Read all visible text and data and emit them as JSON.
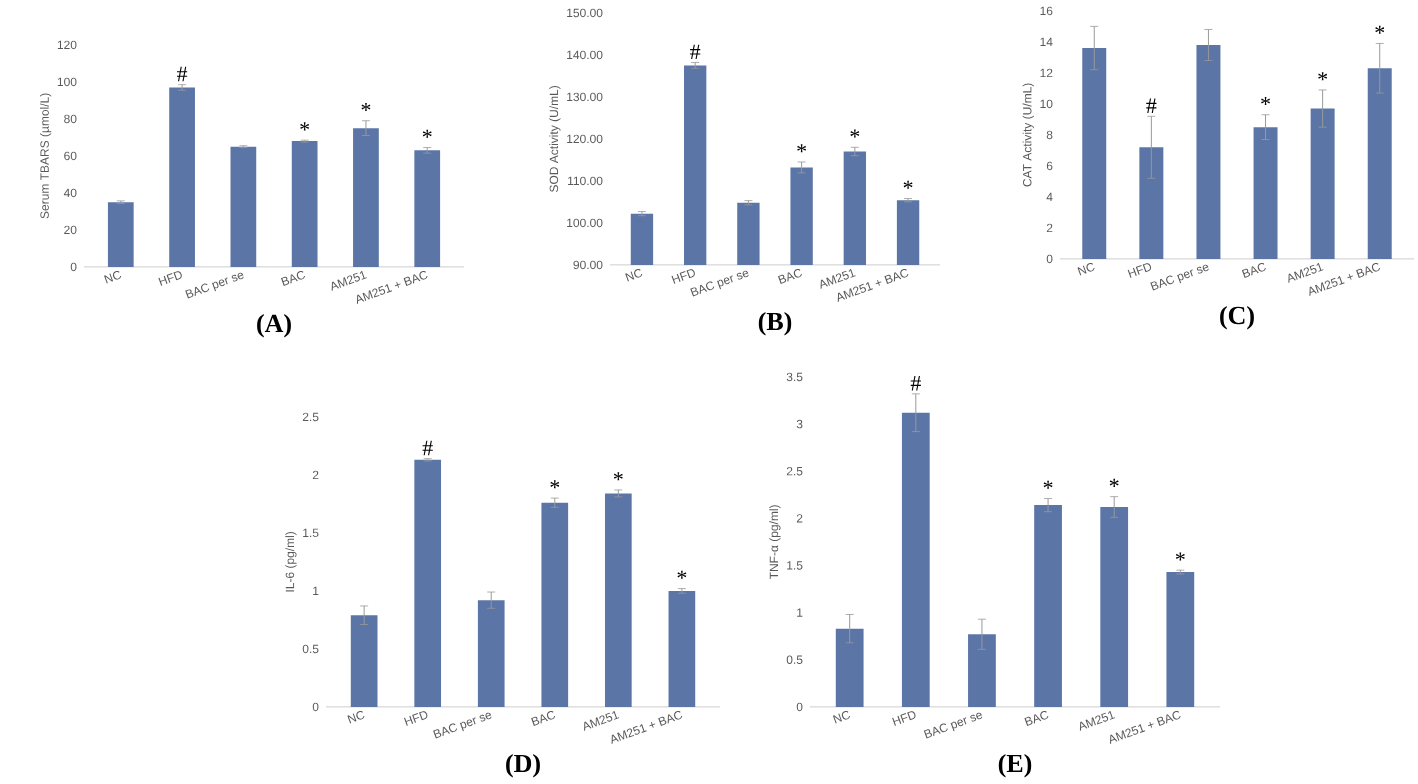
{
  "chart_data": [
    {
      "type": "bar",
      "title": "(A)",
      "ylabel": "Serum TBARS (µmol/L)",
      "categories": [
        "NC",
        "HFD",
        "BAC per se",
        "BAC",
        "AM251",
        "AM251 + BAC"
      ],
      "values": [
        35,
        97,
        65,
        68,
        75,
        63
      ],
      "errors": [
        0.7,
        1.5,
        0.5,
        0.5,
        4,
        1.5
      ],
      "color": "#5b75a7",
      "ylim": [
        0,
        120
      ],
      "yticks": [
        0,
        20,
        40,
        60,
        80,
        100,
        120
      ],
      "annotations": [
        {
          "text": "#",
          "x": "HFD",
          "y": 97
        },
        {
          "text": "*",
          "x": "BAC",
          "y": 68
        },
        {
          "text": "*",
          "x": "AM251",
          "y": 75
        },
        {
          "text": "*",
          "x": "AM251 + BAC",
          "y": 63
        }
      ]
    },
    {
      "type": "bar",
      "title": "(B)",
      "ylabel": "SOD Activity (U/mL)",
      "categories": [
        "NC",
        "HFD",
        "BAC per se",
        "BAC",
        "AM251",
        "AM251 + BAC"
      ],
      "values": [
        102.2,
        137.5,
        104.8,
        113.2,
        117,
        105.4
      ],
      "errors": [
        0.5,
        0.7,
        0.5,
        1.3,
        1,
        0.4
      ],
      "color": "#5b75a7",
      "ylim": [
        90,
        150
      ],
      "yticks": [
        {
          "value": 90,
          "label": "90.00"
        },
        {
          "value": 100,
          "label": "100.00"
        },
        {
          "value": 110,
          "label": "110.00"
        },
        {
          "value": 120,
          "label": "120.00"
        },
        {
          "value": 130,
          "label": "130.00"
        },
        {
          "value": 140,
          "label": "140.00"
        },
        {
          "value": 150,
          "label": "150.00"
        }
      ],
      "annotations": [
        {
          "text": "#",
          "x": "HFD",
          "y": 137.5
        },
        {
          "text": "*",
          "x": "BAC",
          "y": 113.2
        },
        {
          "text": "*",
          "x": "AM251",
          "y": 117
        },
        {
          "text": "*",
          "x": "AM251 + BAC",
          "y": 105.4
        }
      ]
    },
    {
      "type": "bar",
      "title": "(C)",
      "ylabel": "CAT Activity (U/mL)",
      "categories": [
        "NC",
        "HFD",
        "BAC per se",
        "BAC",
        "AM251",
        "AM251 + BAC"
      ],
      "values": [
        13.6,
        7.2,
        13.8,
        8.5,
        9.7,
        12.3
      ],
      "errors": [
        1.4,
        2,
        1,
        0.8,
        1.2,
        1.6
      ],
      "color": "#5b75a7",
      "ylim": [
        0,
        16
      ],
      "yticks": [
        0,
        2,
        4,
        6,
        8,
        10,
        12,
        14,
        16
      ],
      "annotations": [
        {
          "text": "#",
          "x": "HFD",
          "y": 7.2
        },
        {
          "text": "*",
          "x": "BAC",
          "y": 8.5
        },
        {
          "text": "*",
          "x": "AM251",
          "y": 9.7
        },
        {
          "text": "*",
          "x": "AM251 + BAC",
          "y": 12.3
        }
      ]
    },
    {
      "type": "bar",
      "title": "(D)",
      "ylabel": "IL-6 (pg/ml)",
      "categories": [
        "NC",
        "HFD",
        "BAC per se",
        "BAC",
        "AM251",
        "AM251 + BAC"
      ],
      "values": [
        0.79,
        2.13,
        0.92,
        1.76,
        1.84,
        1.0
      ],
      "errors": [
        0.08,
        0.01,
        0.07,
        0.04,
        0.03,
        0.02
      ],
      "color": "#5b75a7",
      "ylim": [
        0,
        2.5
      ],
      "yticks": [
        0,
        0.5,
        1,
        1.5,
        2,
        2.5
      ],
      "annotations": [
        {
          "text": "#",
          "x": "HFD",
          "y": 2.13
        },
        {
          "text": "*",
          "x": "BAC",
          "y": 1.76
        },
        {
          "text": "*",
          "x": "AM251",
          "y": 1.84
        },
        {
          "text": "*",
          "x": "AM251 + BAC",
          "y": 1.0
        }
      ]
    },
    {
      "type": "bar",
      "title": "(E)",
      "ylabel": "TNF-α (pg/ml)",
      "categories": [
        "NC",
        "HFD",
        "BAC per se",
        "BAC",
        "AM251",
        "AM251 + BAC"
      ],
      "values": [
        0.83,
        3.12,
        0.77,
        2.14,
        2.12,
        1.43
      ],
      "errors": [
        0.15,
        0.2,
        0.16,
        0.07,
        0.11,
        0.02
      ],
      "color": "#5b75a7",
      "ylim": [
        0,
        3.5
      ],
      "yticks": [
        0,
        0.5,
        1,
        1.5,
        2,
        2.5,
        3,
        3.5
      ],
      "annotations": [
        {
          "text": "#",
          "x": "HFD",
          "y": 3.12
        },
        {
          "text": "*",
          "x": "BAC",
          "y": 2.14
        },
        {
          "text": "*",
          "x": "AM251",
          "y": 2.12
        },
        {
          "text": "*",
          "x": "AM251 + BAC",
          "y": 1.43
        }
      ]
    }
  ]
}
